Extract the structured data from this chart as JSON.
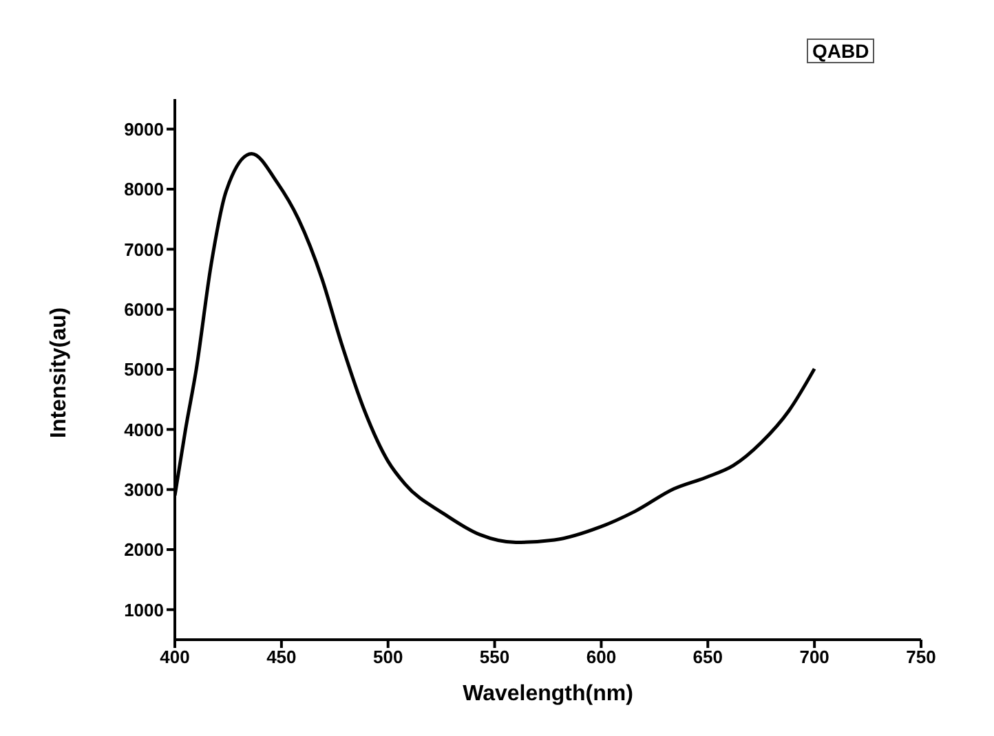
{
  "chart_data": {
    "type": "line",
    "xlabel": "Wavelength(nm)",
    "ylabel": "Intensity(au)",
    "annotations": [
      "QABD"
    ],
    "x": [
      400,
      405,
      410,
      417,
      424,
      436,
      448,
      458,
      469,
      478,
      489,
      500,
      508,
      526,
      543,
      560,
      578,
      599,
      616,
      634,
      649,
      662,
      675,
      688,
      700
    ],
    "series": [
      {
        "color": "#000000",
        "values": [
          2900,
          4000,
          4990,
          6740,
          7960,
          8590,
          8110,
          7500,
          6510,
          5450,
          4310,
          3470,
          3090,
          2600,
          2250,
          2120,
          2160,
          2370,
          2640,
          3010,
          3200,
          3400,
          3780,
          4310,
          5010
        ]
      }
    ],
    "xlim": [
      400,
      750
    ],
    "xticks": [
      400,
      450,
      500,
      550,
      600,
      650,
      700,
      750
    ],
    "ylim": [
      500,
      9500
    ],
    "yticks": [
      1000,
      2000,
      3000,
      4000,
      5000,
      6000,
      7000,
      8000,
      9000
    ],
    "grid": false,
    "marker": "none",
    "line_style": "solid"
  }
}
